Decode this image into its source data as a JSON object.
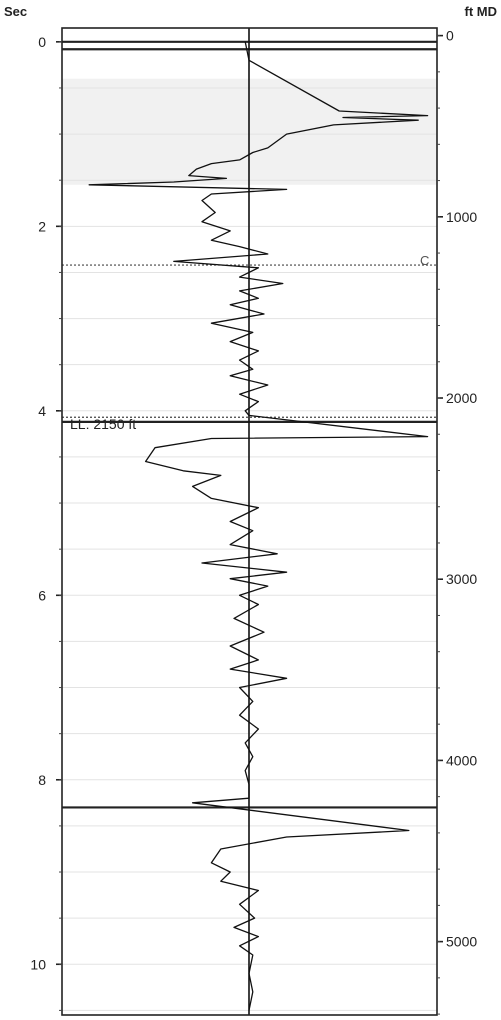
{
  "chart_data": {
    "type": "line",
    "left_axis": {
      "label": "Sec",
      "range": [
        -0.15,
        10.55
      ],
      "ticks": [
        0,
        2,
        4,
        6,
        8,
        10
      ],
      "tick_labels": [
        "0",
        "2",
        "4",
        "6",
        "8",
        "10"
      ]
    },
    "right_axis": {
      "label": "ft MD",
      "range": [
        -42,
        5405
      ],
      "ticks": [
        0,
        1000,
        2000,
        3000,
        4000,
        5000
      ],
      "tick_labels": [
        "0",
        "1000",
        "2000",
        "3000",
        "4000",
        "5000"
      ]
    },
    "x_range": [
      -1,
      1
    ],
    "center_line_x": 0,
    "grid": true,
    "shaded_interval_sec": [
      0.4,
      1.55
    ],
    "casing_lines_sec": [
      0.0,
      0.08,
      4.12,
      8.3
    ],
    "dotted_lines_sec": [
      2.42,
      4.07
    ],
    "annotations": [
      {
        "text": "LL: 2150 ft",
        "at_sec": 4.0
      },
      {
        "text": "C",
        "at_sec": 2.33
      }
    ],
    "series": [
      {
        "points": [
          [
            -0.02,
            0.0
          ],
          [
            0.0,
            0.2
          ],
          [
            0.48,
            0.75
          ],
          [
            0.95,
            0.8
          ],
          [
            0.5,
            0.82
          ],
          [
            0.9,
            0.85
          ],
          [
            0.45,
            0.9
          ],
          [
            0.2,
            1.0
          ],
          [
            0.1,
            1.15
          ],
          [
            0.02,
            1.2
          ],
          [
            -0.05,
            1.28
          ],
          [
            -0.2,
            1.32
          ],
          [
            -0.28,
            1.38
          ],
          [
            -0.32,
            1.45
          ],
          [
            -0.12,
            1.48
          ],
          [
            -0.4,
            1.52
          ],
          [
            -0.85,
            1.55
          ],
          [
            0.2,
            1.6
          ],
          [
            -0.2,
            1.65
          ],
          [
            -0.25,
            1.72
          ],
          [
            -0.18,
            1.85
          ],
          [
            -0.25,
            1.95
          ],
          [
            -0.1,
            2.05
          ],
          [
            -0.2,
            2.15
          ],
          [
            -0.05,
            2.22
          ],
          [
            0.1,
            2.3
          ],
          [
            -0.4,
            2.38
          ],
          [
            0.05,
            2.45
          ],
          [
            -0.05,
            2.55
          ],
          [
            0.18,
            2.62
          ],
          [
            -0.05,
            2.7
          ],
          [
            0.05,
            2.78
          ],
          [
            -0.1,
            2.85
          ],
          [
            0.08,
            2.95
          ],
          [
            -0.2,
            3.05
          ],
          [
            0.02,
            3.15
          ],
          [
            -0.1,
            3.25
          ],
          [
            0.05,
            3.35
          ],
          [
            -0.05,
            3.45
          ],
          [
            0.02,
            3.55
          ],
          [
            -0.1,
            3.62
          ],
          [
            0.1,
            3.72
          ],
          [
            -0.05,
            3.82
          ],
          [
            0.05,
            3.9
          ],
          [
            -0.02,
            4.0
          ],
          [
            0.0,
            4.05
          ],
          [
            0.95,
            4.28
          ],
          [
            -0.2,
            4.3
          ],
          [
            -0.5,
            4.4
          ],
          [
            -0.55,
            4.55
          ],
          [
            -0.35,
            4.65
          ],
          [
            -0.15,
            4.7
          ],
          [
            -0.3,
            4.82
          ],
          [
            -0.2,
            4.95
          ],
          [
            0.05,
            5.05
          ],
          [
            -0.1,
            5.2
          ],
          [
            0.02,
            5.3
          ],
          [
            -0.1,
            5.45
          ],
          [
            0.15,
            5.55
          ],
          [
            -0.25,
            5.65
          ],
          [
            0.2,
            5.75
          ],
          [
            -0.1,
            5.82
          ],
          [
            0.1,
            5.9
          ],
          [
            -0.05,
            6.0
          ],
          [
            0.05,
            6.1
          ],
          [
            -0.08,
            6.25
          ],
          [
            0.08,
            6.4
          ],
          [
            -0.1,
            6.55
          ],
          [
            0.05,
            6.7
          ],
          [
            -0.1,
            6.8
          ],
          [
            0.2,
            6.9
          ],
          [
            -0.05,
            7.0
          ],
          [
            0.02,
            7.15
          ],
          [
            -0.05,
            7.3
          ],
          [
            0.05,
            7.45
          ],
          [
            -0.02,
            7.6
          ],
          [
            0.02,
            7.75
          ],
          [
            -0.02,
            7.9
          ],
          [
            0.0,
            8.05
          ],
          [
            0.0,
            8.2
          ],
          [
            -0.3,
            8.25
          ],
          [
            0.85,
            8.55
          ],
          [
            0.2,
            8.62
          ],
          [
            -0.15,
            8.75
          ],
          [
            -0.2,
            8.9
          ],
          [
            -0.1,
            9.0
          ],
          [
            -0.15,
            9.1
          ],
          [
            0.05,
            9.2
          ],
          [
            -0.05,
            9.35
          ],
          [
            0.03,
            9.5
          ],
          [
            -0.08,
            9.6
          ],
          [
            0.05,
            9.7
          ],
          [
            -0.05,
            9.8
          ],
          [
            0.02,
            9.9
          ],
          [
            0.0,
            10.1
          ],
          [
            0.02,
            10.3
          ],
          [
            0.0,
            10.5
          ]
        ]
      }
    ]
  }
}
